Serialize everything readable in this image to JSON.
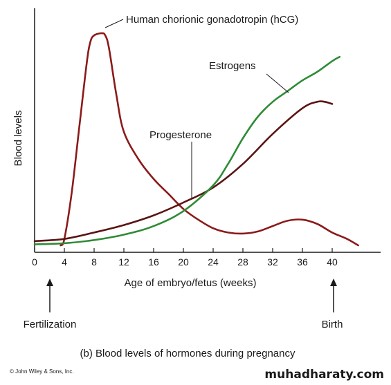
{
  "chart_data": {
    "type": "line",
    "title": "",
    "caption": "(b) Blood levels of hormones during pregnancy",
    "xlabel": "Age of embryo/fetus (weeks)",
    "ylabel": "Blood levels",
    "xlim": [
      0,
      46
    ],
    "ylim": [
      0,
      100
    ],
    "x_ticks": [
      0,
      4,
      8,
      12,
      16,
      20,
      24,
      28,
      32,
      36,
      40
    ],
    "x_tick_labels": [
      "0",
      "4",
      "8",
      "12",
      "16",
      "20",
      "24",
      "28",
      "32",
      "36",
      "40"
    ],
    "grid": false,
    "legend": "none (series labeled directly on the curves)",
    "series": [
      {
        "name": "Human chorionic gonadotropin (hCG)",
        "color": "#8b1a1a",
        "x": [
          3.5,
          4,
          5,
          6,
          7,
          7.5,
          8,
          9,
          9.5,
          10,
          11,
          12,
          14,
          16,
          18,
          20,
          22,
          24,
          26,
          28,
          30,
          32,
          34,
          36,
          38,
          40,
          42,
          43.5
        ],
        "y": [
          0,
          3,
          25,
          55,
          85,
          95,
          98,
          99,
          98,
          92,
          70,
          53,
          40,
          31,
          24,
          17,
          12,
          8,
          6,
          5.5,
          6.5,
          9,
          11.5,
          12,
          10,
          6,
          3,
          0
        ]
      },
      {
        "name": "Progesterone",
        "color": "#5a1414",
        "x": [
          0,
          4,
          8,
          12,
          16,
          20,
          24,
          28,
          32,
          36,
          38,
          39,
          40
        ],
        "y": [
          2,
          3,
          6,
          9.5,
          14,
          20,
          27,
          38,
          52,
          64,
          67,
          67,
          66
        ]
      },
      {
        "name": "Estrogens",
        "color": "#2e8b36",
        "x": [
          0,
          4,
          8,
          12,
          16,
          20,
          24,
          26,
          28,
          30,
          32,
          34,
          36,
          38,
          40,
          41
        ],
        "y": [
          0.5,
          1,
          2.5,
          5,
          9,
          16,
          28,
          38,
          50,
          60,
          67,
          72,
          77,
          81,
          86,
          88
        ]
      }
    ],
    "annotations": [
      {
        "label": "Fertilization",
        "x": 2
      },
      {
        "label": "Birth",
        "x": 40
      }
    ]
  },
  "credit": "© John Wiley & Sons, Inc.",
  "watermark": "muhadharaty.com"
}
